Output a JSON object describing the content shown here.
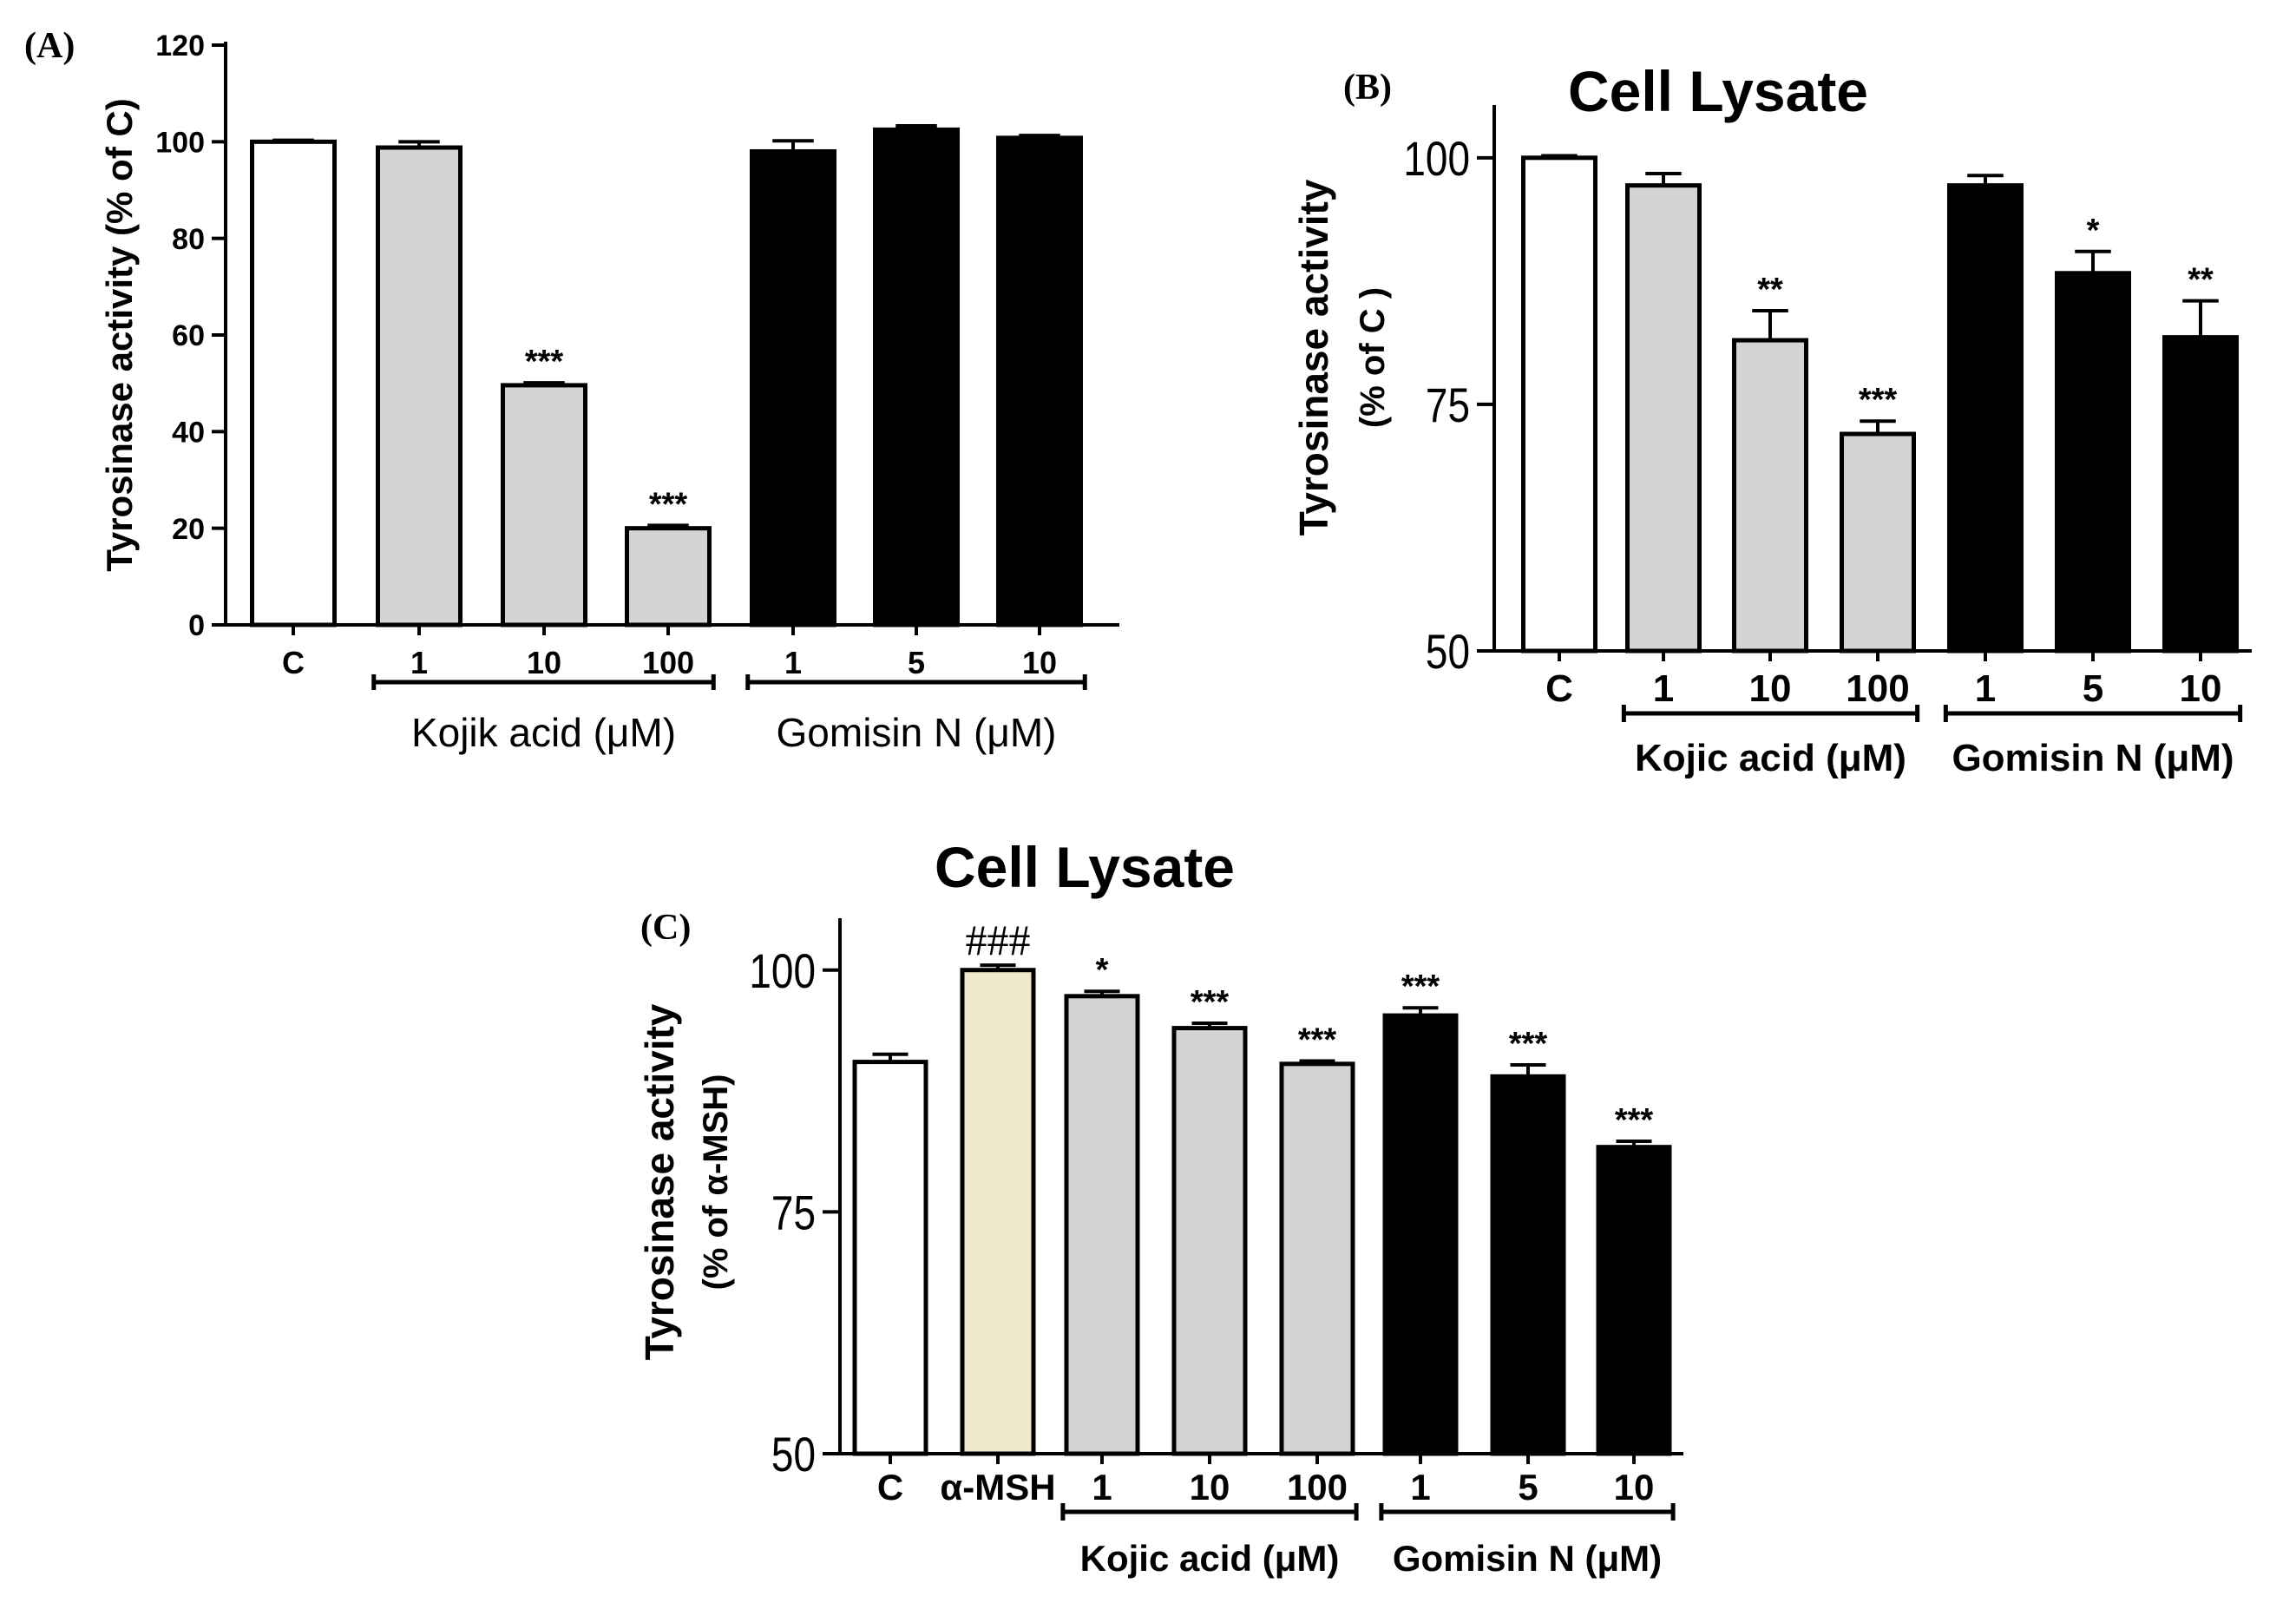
{
  "chart_data": [
    {
      "type": "bar",
      "panel_label": "(A)",
      "title": "",
      "ylabel": "Tyrosinase activity (% of C)",
      "ylim": [
        0,
        120
      ],
      "yticks": [
        "0",
        "20",
        "40",
        "60",
        "80",
        "100",
        "120"
      ],
      "categories": [
        "C",
        "1",
        "10",
        "100",
        "1",
        "5",
        "10"
      ],
      "values": [
        100,
        98.8,
        49.6,
        20.0,
        98.0,
        102.5,
        100.8
      ],
      "errors": [
        0.3,
        1.2,
        0.5,
        0.6,
        2.2,
        0.8,
        0.5
      ],
      "fills": [
        "#ffffff",
        "#d3d3d3",
        "#d3d3d3",
        "#d3d3d3",
        "#000000",
        "#000000",
        "#000000"
      ],
      "significance": [
        "",
        "",
        "***",
        "***",
        "",
        "",
        ""
      ],
      "groups": [
        {
          "label": "Kojik acid (μM)",
          "from": 1,
          "to": 3
        },
        {
          "label": "Gomisin N (μM)",
          "from": 4,
          "to": 6
        }
      ]
    },
    {
      "type": "bar",
      "panel_label": "(B)",
      "title": "Cell Lysate",
      "ylabel": "Tyrosinase activity",
      "ylabel2": "(% of  C )",
      "ylim": [
        50,
        105
      ],
      "yticks": [
        "50",
        "75",
        "100"
      ],
      "categories": [
        "C",
        "1",
        "10",
        "100",
        "1",
        "5",
        "10"
      ],
      "values": [
        100,
        97.2,
        81.5,
        72.0,
        97.2,
        88.3,
        81.8
      ],
      "errors": [
        0.2,
        1.2,
        3.0,
        1.3,
        1.0,
        2.2,
        3.7
      ],
      "fills": [
        "#ffffff",
        "#d3d3d3",
        "#d3d3d3",
        "#d3d3d3",
        "#000000",
        "#000000",
        "#000000"
      ],
      "significance": [
        "",
        "",
        "**",
        "***",
        "",
        "*",
        "**"
      ],
      "groups": [
        {
          "label": "Kojic acid (μM)",
          "from": 1,
          "to": 3
        },
        {
          "label": "Gomisin N (μM)",
          "from": 4,
          "to": 6
        }
      ]
    },
    {
      "type": "bar",
      "panel_label": "(C)",
      "title": "Cell Lysate",
      "ylabel": "Tyrosinase activity",
      "ylabel2": "(% of α-MSH)",
      "ylim": [
        50,
        105
      ],
      "yticks": [
        "50",
        "75",
        "100"
      ],
      "categories": [
        "C",
        "α-MSH",
        "1",
        "10",
        "100",
        "1",
        "5",
        "10"
      ],
      "values": [
        90.5,
        100,
        97.3,
        94.0,
        90.3,
        95.3,
        89.0,
        81.7
      ],
      "errors": [
        0.8,
        0.5,
        0.5,
        0.5,
        0.3,
        0.8,
        1.2,
        0.6
      ],
      "fills": [
        "#ffffff",
        "#efe8ca",
        "#d3d3d3",
        "#d3d3d3",
        "#d3d3d3",
        "#000000",
        "#000000",
        "#000000"
      ],
      "significance": [
        "",
        "###",
        "*",
        "***",
        "***",
        "***",
        "***",
        "***"
      ],
      "groups": [
        {
          "label": "Kojic acid (μM)",
          "from": 2,
          "to": 4
        },
        {
          "label": "Gomisin N (μM)",
          "from": 5,
          "to": 7
        }
      ]
    }
  ]
}
